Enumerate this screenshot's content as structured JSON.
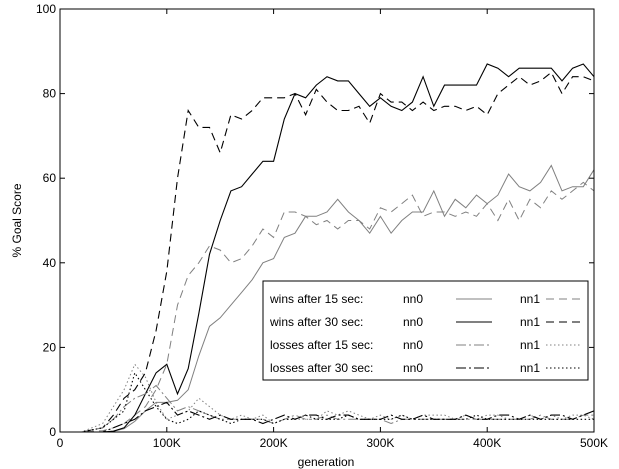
{
  "chart_data": {
    "type": "line",
    "title": "",
    "xlabel": "generation",
    "ylabel": "% Goal Score",
    "xlim": [
      0,
      500000
    ],
    "ylim": [
      0,
      100
    ],
    "x_ticks": [
      {
        "value": 0,
        "label": "0"
      },
      {
        "value": 100000,
        "label": "100K"
      },
      {
        "value": 200000,
        "label": "200K"
      },
      {
        "value": 300000,
        "label": "300K"
      },
      {
        "value": 400000,
        "label": "400K"
      },
      {
        "value": 500000,
        "label": "500K"
      }
    ],
    "y_ticks": [
      {
        "value": 0,
        "label": "0"
      },
      {
        "value": 20,
        "label": "20"
      },
      {
        "value": 40,
        "label": "40"
      },
      {
        "value": 60,
        "label": "60"
      },
      {
        "value": 80,
        "label": "80"
      },
      {
        "value": 100,
        "label": "100"
      }
    ],
    "grid": false,
    "legend_position": "bottom-right",
    "legend_rows": [
      {
        "label": "wins after 15 sec:",
        "left_name": "nn0",
        "right_name": "nn1"
      },
      {
        "label": "wins after 30 sec:",
        "left_name": "nn0",
        "right_name": "nn1"
      },
      {
        "label": "losses after 15 sec:",
        "left_name": "nn0",
        "right_name": "nn1"
      },
      {
        "label": "losses after 30 sec:",
        "left_name": "nn0",
        "right_name": "nn1"
      }
    ],
    "series": [
      {
        "name": "wins after 15 sec: nn0",
        "color": "#808080",
        "dash": "solid",
        "x": [
          0,
          20000,
          40000,
          50000,
          60000,
          70000,
          80000,
          90000,
          100000,
          110000,
          120000,
          130000,
          140000,
          150000,
          160000,
          170000,
          180000,
          190000,
          200000,
          210000,
          220000,
          230000,
          240000,
          250000,
          260000,
          270000,
          280000,
          290000,
          300000,
          310000,
          320000,
          330000,
          340000,
          350000,
          360000,
          370000,
          380000,
          390000,
          400000,
          410000,
          420000,
          430000,
          440000,
          450000,
          460000,
          470000,
          480000,
          490000,
          500000
        ],
        "y": [
          0,
          0,
          0,
          0.2,
          0.8,
          2.5,
          5,
          7,
          7,
          7.5,
          10,
          18,
          25,
          27,
          30,
          33,
          36,
          40,
          41,
          46,
          47,
          51,
          51,
          52,
          55,
          52,
          50,
          47,
          51,
          47,
          50,
          52,
          52,
          57,
          51,
          55,
          53,
          56,
          54,
          56,
          61,
          58,
          57,
          59,
          63,
          57,
          58,
          58,
          62
        ]
      },
      {
        "name": "wins after 15 sec: nn1",
        "color": "#808080",
        "dash": "8,5",
        "x": [
          0,
          20000,
          40000,
          50000,
          60000,
          70000,
          80000,
          90000,
          100000,
          110000,
          120000,
          130000,
          140000,
          150000,
          160000,
          170000,
          180000,
          190000,
          200000,
          210000,
          220000,
          230000,
          240000,
          250000,
          260000,
          270000,
          280000,
          290000,
          300000,
          310000,
          320000,
          330000,
          340000,
          350000,
          360000,
          370000,
          380000,
          390000,
          400000,
          410000,
          420000,
          430000,
          440000,
          450000,
          460000,
          470000,
          480000,
          490000,
          500000
        ],
        "y": [
          0,
          0,
          0.3,
          1,
          2,
          4,
          6,
          10,
          16,
          30,
          37,
          40,
          44,
          43,
          40,
          41,
          44,
          48,
          46,
          52,
          52,
          51,
          49,
          50,
          48,
          50,
          50,
          48,
          53,
          52,
          54,
          56,
          51,
          52,
          52,
          51,
          52,
          51,
          54,
          50,
          55,
          50,
          55,
          53,
          57,
          55,
          57,
          59,
          57
        ]
      },
      {
        "name": "wins after 30 sec: nn0",
        "color": "#000000",
        "dash": "solid",
        "x": [
          0,
          20000,
          40000,
          50000,
          60000,
          70000,
          80000,
          90000,
          100000,
          110000,
          120000,
          130000,
          140000,
          150000,
          160000,
          170000,
          180000,
          190000,
          200000,
          210000,
          220000,
          230000,
          240000,
          250000,
          260000,
          270000,
          280000,
          290000,
          300000,
          310000,
          320000,
          330000,
          340000,
          350000,
          360000,
          370000,
          380000,
          390000,
          400000,
          410000,
          420000,
          430000,
          440000,
          450000,
          460000,
          470000,
          480000,
          490000,
          500000
        ],
        "y": [
          0,
          0,
          0,
          0.2,
          1,
          4,
          9,
          14,
          16,
          9,
          15,
          28,
          42,
          50,
          57,
          58,
          61,
          64,
          64,
          74,
          80,
          79,
          82,
          84,
          83,
          83,
          80,
          77,
          79,
          77,
          76,
          78,
          84,
          77,
          82,
          82,
          82,
          82,
          87,
          86,
          84,
          86,
          86,
          86,
          86,
          83,
          86,
          87,
          84
        ]
      },
      {
        "name": "wins after 30 sec: nn1",
        "color": "#000000",
        "dash": "8,5",
        "x": [
          0,
          20000,
          40000,
          50000,
          60000,
          70000,
          80000,
          90000,
          100000,
          110000,
          120000,
          130000,
          140000,
          150000,
          160000,
          170000,
          180000,
          190000,
          200000,
          210000,
          220000,
          230000,
          240000,
          250000,
          260000,
          270000,
          280000,
          290000,
          300000,
          310000,
          320000,
          330000,
          340000,
          350000,
          360000,
          370000,
          380000,
          390000,
          400000,
          410000,
          420000,
          430000,
          440000,
          450000,
          460000,
          470000,
          480000,
          490000,
          500000
        ],
        "y": [
          0,
          0,
          1,
          4,
          8,
          10,
          14,
          24,
          38,
          60,
          76,
          72,
          72,
          66,
          75,
          74,
          76,
          79,
          79,
          79,
          80,
          75,
          81,
          78,
          76,
          76,
          77,
          73,
          80,
          78,
          78,
          76,
          78,
          76,
          77,
          77,
          76,
          77,
          75,
          80,
          82,
          84,
          82,
          83,
          85,
          80,
          84,
          84,
          83
        ]
      },
      {
        "name": "losses after 15 sec: nn0",
        "color": "#808080",
        "dash": "10,3,2,3",
        "x": [
          0,
          20000,
          40000,
          50000,
          60000,
          70000,
          80000,
          90000,
          100000,
          110000,
          120000,
          130000,
          140000,
          150000,
          160000,
          170000,
          180000,
          190000,
          200000,
          210000,
          220000,
          230000,
          240000,
          250000,
          260000,
          270000,
          280000,
          290000,
          300000,
          310000,
          320000,
          330000,
          340000,
          350000,
          360000,
          370000,
          380000,
          390000,
          400000,
          410000,
          420000,
          430000,
          440000,
          450000,
          460000,
          470000,
          480000,
          490000,
          500000
        ],
        "y": [
          0,
          0,
          1,
          3,
          6,
          8,
          9,
          11,
          8,
          5,
          6,
          5,
          4,
          3,
          3,
          3,
          3,
          3,
          2,
          3,
          4,
          3,
          3,
          4,
          3,
          3,
          3,
          3,
          3,
          2,
          3,
          3,
          3,
          3,
          3,
          3,
          3,
          3,
          3,
          3,
          3,
          3,
          3,
          4,
          3,
          3,
          3,
          4,
          4
        ]
      },
      {
        "name": "losses after 15 sec: nn1",
        "color": "#808080",
        "dash": "1.5,2.5",
        "x": [
          0,
          20000,
          40000,
          50000,
          60000,
          70000,
          80000,
          90000,
          100000,
          110000,
          120000,
          130000,
          140000,
          150000,
          160000,
          170000,
          180000,
          190000,
          200000,
          210000,
          220000,
          230000,
          240000,
          250000,
          260000,
          270000,
          280000,
          290000,
          300000,
          310000,
          320000,
          330000,
          340000,
          350000,
          360000,
          370000,
          380000,
          390000,
          400000,
          410000,
          420000,
          430000,
          440000,
          450000,
          460000,
          470000,
          480000,
          490000,
          500000
        ],
        "y": [
          0,
          0,
          2,
          6,
          10,
          16,
          13,
          7,
          3,
          4,
          5,
          8,
          6,
          4,
          3,
          4,
          3,
          4,
          2,
          3,
          3,
          3,
          3,
          5,
          4,
          5,
          4,
          3,
          4,
          3,
          4,
          3,
          4,
          4,
          4,
          3,
          4,
          3,
          4,
          4,
          3,
          3,
          4,
          3,
          4,
          3,
          4,
          4,
          3
        ]
      },
      {
        "name": "losses after 30 sec: nn0",
        "color": "#000000",
        "dash": "10,3,2,3",
        "x": [
          0,
          20000,
          40000,
          50000,
          60000,
          70000,
          80000,
          90000,
          100000,
          110000,
          120000,
          130000,
          140000,
          150000,
          160000,
          170000,
          180000,
          190000,
          200000,
          210000,
          220000,
          230000,
          240000,
          250000,
          260000,
          270000,
          280000,
          290000,
          300000,
          310000,
          320000,
          330000,
          340000,
          350000,
          360000,
          370000,
          380000,
          390000,
          400000,
          410000,
          420000,
          430000,
          440000,
          450000,
          460000,
          470000,
          480000,
          490000,
          500000
        ],
        "y": [
          0,
          0,
          0,
          1,
          2,
          3,
          5,
          6,
          7,
          4,
          5,
          4,
          3,
          4,
          3,
          3,
          3,
          2,
          3,
          4,
          3,
          4,
          4,
          3,
          4,
          4,
          3,
          3,
          3,
          4,
          3,
          3,
          4,
          3,
          3,
          3,
          4,
          3,
          3,
          4,
          4,
          3,
          4,
          3,
          4,
          4,
          3,
          4,
          5
        ]
      },
      {
        "name": "losses after 30 sec: nn1",
        "color": "#000000",
        "dash": "1.5,2.5",
        "x": [
          0,
          20000,
          40000,
          50000,
          60000,
          70000,
          80000,
          90000,
          100000,
          110000,
          120000,
          130000,
          140000,
          150000,
          160000,
          170000,
          180000,
          190000,
          200000,
          210000,
          220000,
          230000,
          240000,
          250000,
          260000,
          270000,
          280000,
          290000,
          300000,
          310000,
          320000,
          330000,
          340000,
          350000,
          360000,
          370000,
          380000,
          390000,
          400000,
          410000,
          420000,
          430000,
          440000,
          450000,
          460000,
          470000,
          480000,
          490000,
          500000
        ],
        "y": [
          0,
          0,
          1,
          3,
          5,
          14,
          10,
          6,
          3,
          2,
          3,
          5,
          4,
          3,
          2,
          3,
          3,
          3,
          2,
          3,
          3,
          4,
          3,
          3,
          3,
          4,
          3,
          3,
          3,
          3,
          4,
          3,
          3,
          3,
          3,
          3,
          3,
          4,
          3,
          3,
          3,
          3,
          3,
          3,
          3,
          3,
          3,
          3,
          3
        ]
      }
    ]
  }
}
